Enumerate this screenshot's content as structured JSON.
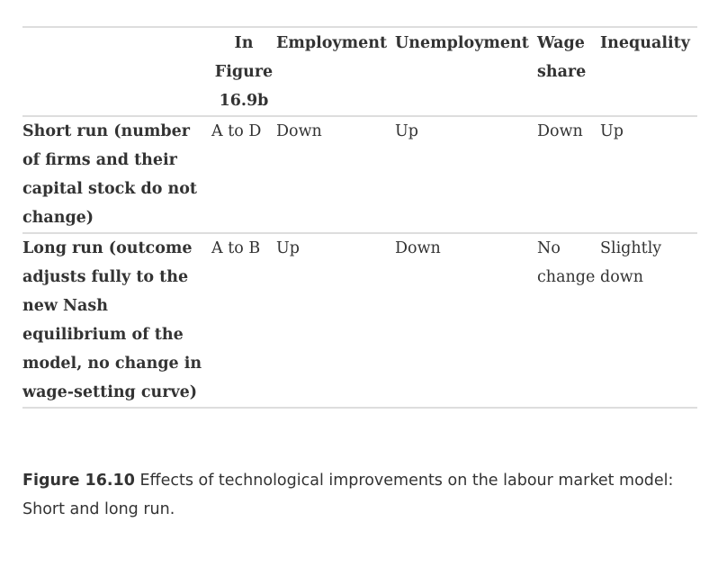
{
  "table": {
    "headers": [
      "",
      "In Figure 16.9b",
      "Employment",
      "Unemployment",
      "Wage share",
      "Inequality"
    ],
    "rows": [
      {
        "label": "Short run (number of firms and their capital stock do not change)",
        "cells": [
          "A to D",
          "Down",
          "Up",
          "Down",
          "Up"
        ]
      },
      {
        "label": "Long run (outcome adjusts fully to the new Nash equilibrium of the model, no change in wage-setting curve)",
        "cells": [
          "A to B",
          "Up",
          "Down",
          "No change",
          "Slightly down"
        ]
      }
    ]
  },
  "caption": {
    "label": "Figure 16.10",
    "text": " Effects of technological improvements on the labour market model: Short and long run."
  }
}
